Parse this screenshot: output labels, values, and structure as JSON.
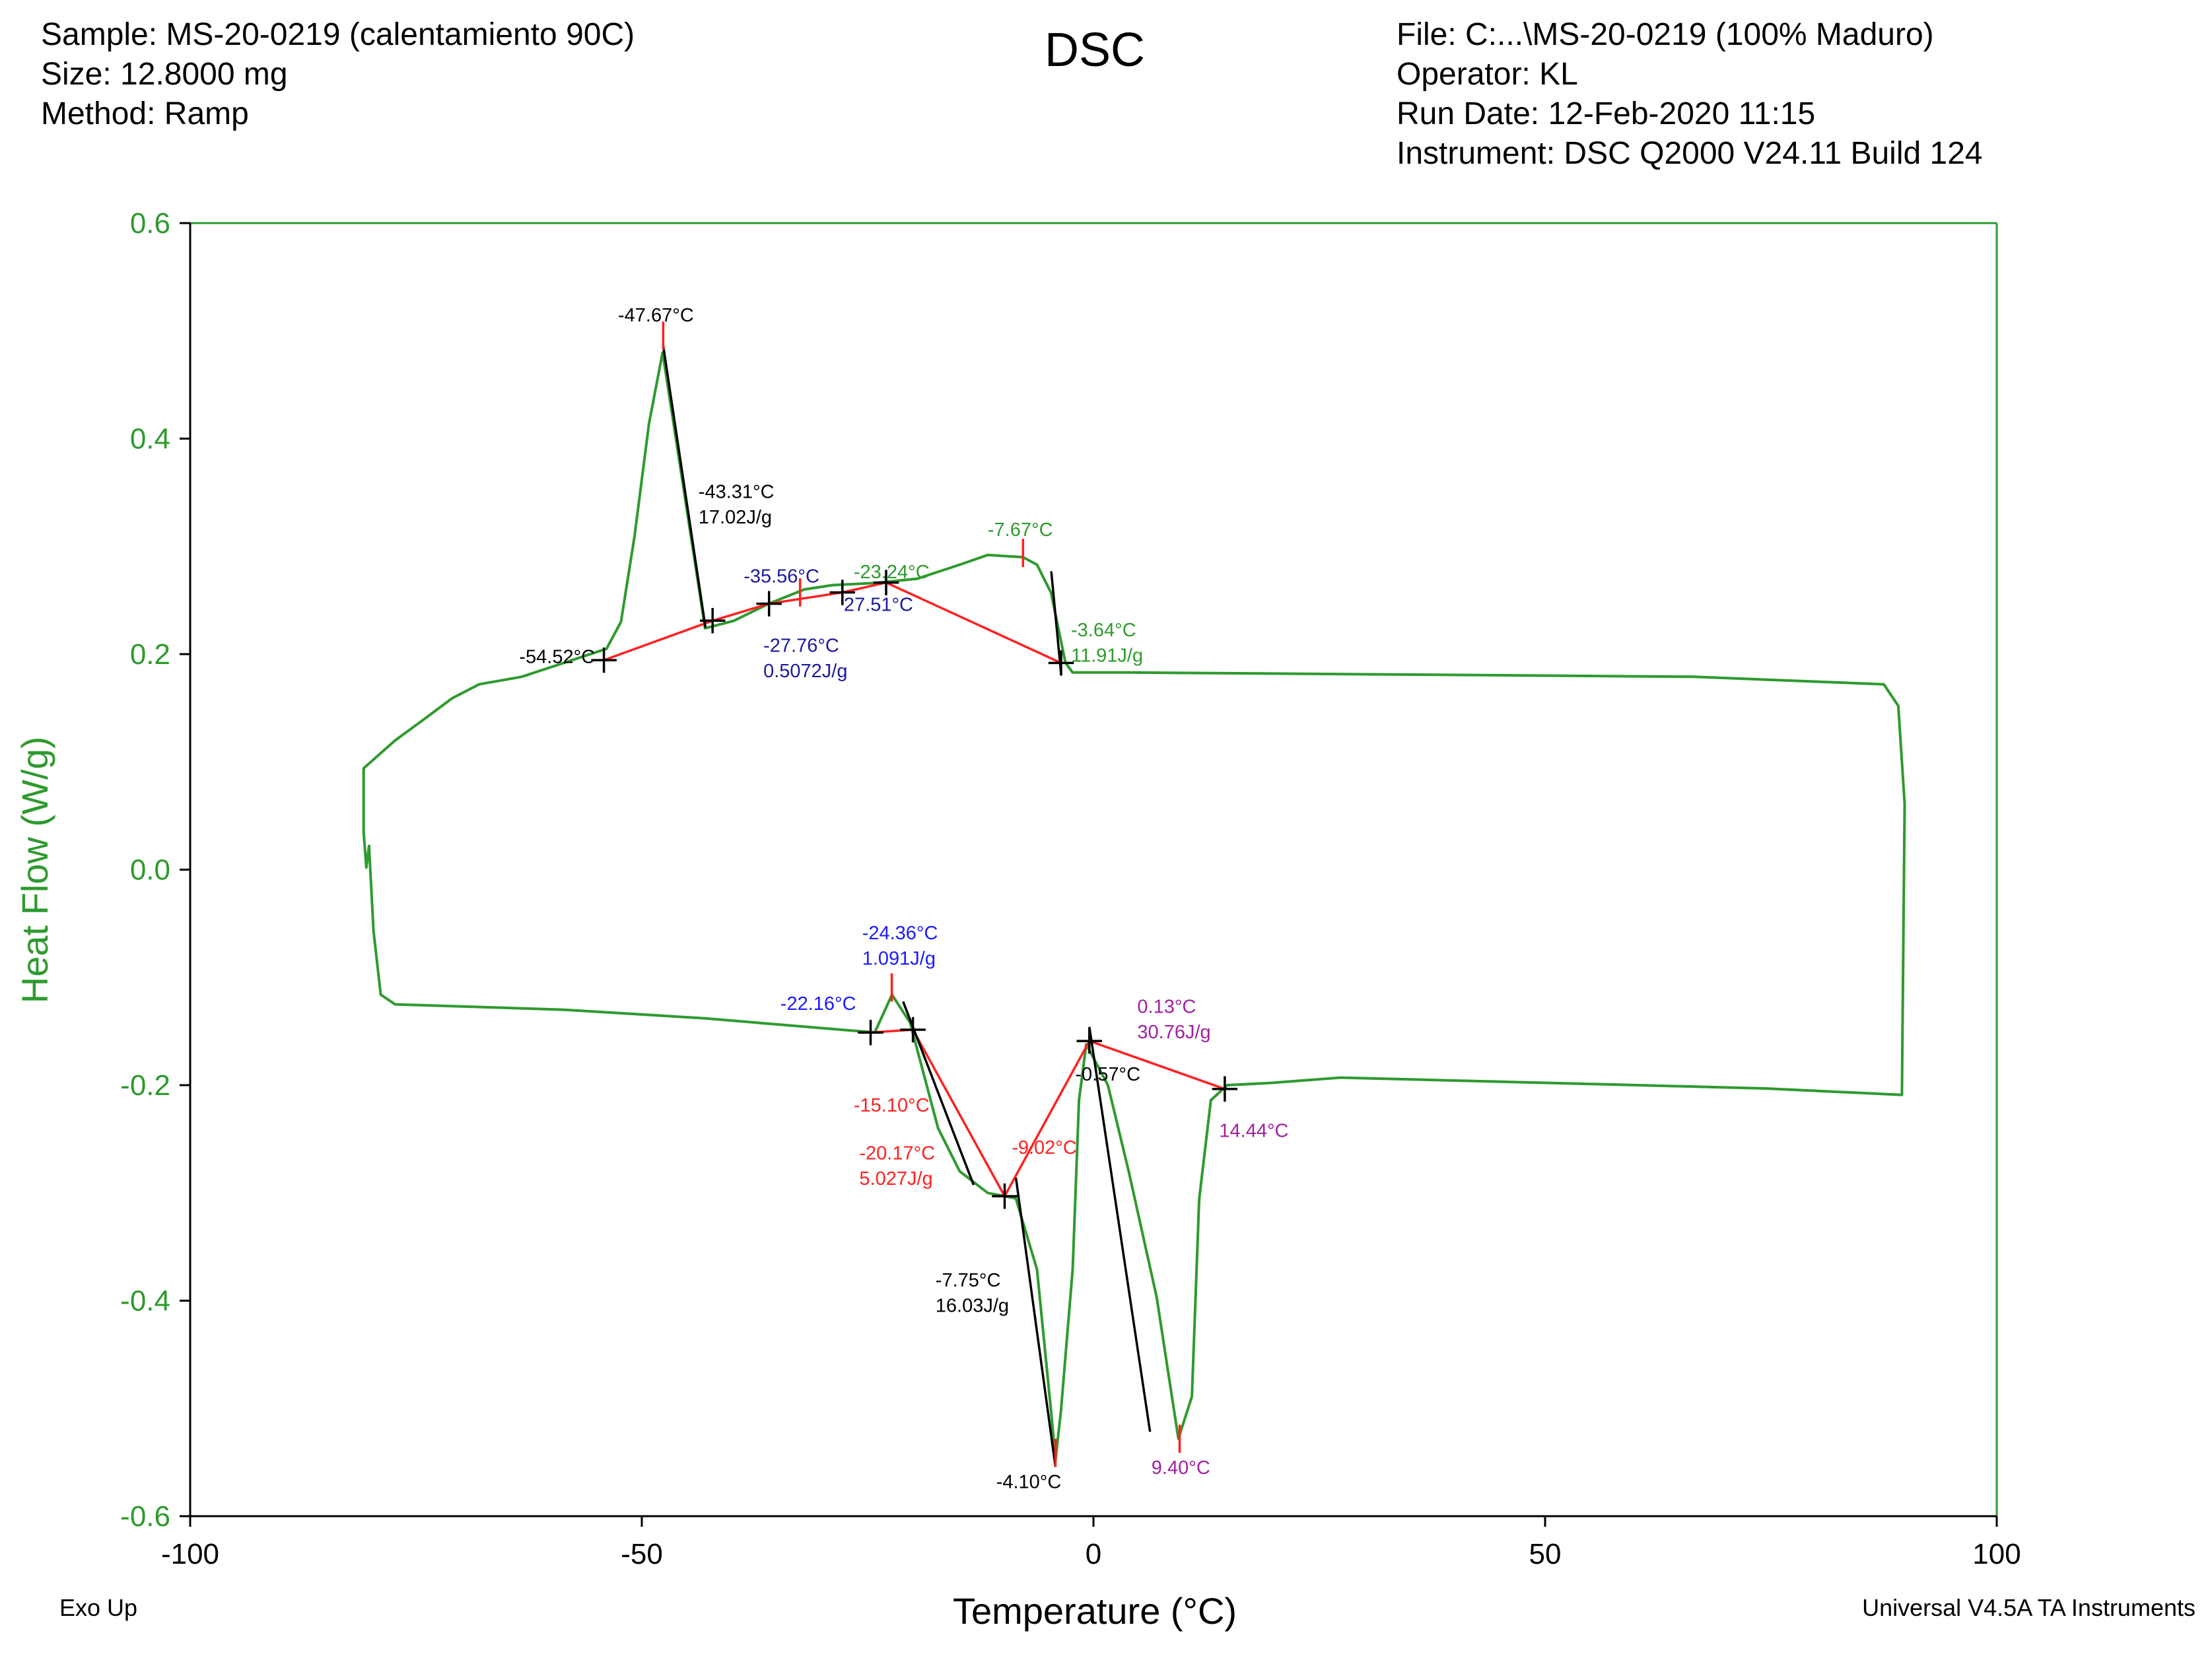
{
  "chart_data": {
    "type": "line",
    "title": "DSC",
    "header_left": [
      "Sample: MS-20-0219 (calentamiento 90C)",
      "Size:  12.8000 mg",
      "Method: Ramp"
    ],
    "header_right": [
      "File: C:...\\MS-20-0219 (100% Maduro)",
      "Operator: KL",
      "Run Date: 12-Feb-2020 11:15",
      "Instrument: DSC Q2000 V24.11 Build 124"
    ],
    "footer_left": "Exo Up",
    "footer_right": "Universal V4.5A TA Instruments",
    "x_label": "Temperature (°C)",
    "y_label": "Heat Flow (W/g)",
    "xlim": [
      -100,
      100
    ],
    "ylim": [
      -0.6,
      0.6
    ],
    "xticks": [
      -100,
      -50,
      {
        "value": 0,
        "label": "0"
      },
      50,
      100
    ],
    "yticks": [
      -0.6,
      -0.4,
      -0.2,
      {
        "value": 0,
        "label": "0.0"
      },
      0.2,
      0.4,
      0.6
    ],
    "axis_color": "#2e9a2e",
    "series": [
      {
        "color": "#2e9a2e",
        "x": [
          89.8,
          89.1,
          87.5,
          66.4,
          35.2,
          3.9,
          -2.3,
          -3.1,
          -4.7,
          -6.25,
          -7.8,
          -11.7,
          -14.8,
          -19.5,
          -24.2,
          -28.9,
          -32,
          -35.9,
          -39.8,
          -43,
          -47.7,
          -49.2,
          -50.8,
          -52.3,
          -53.9,
          -58.6,
          -63.3,
          -68,
          -71,
          -74.2,
          -77.3,
          -80.8,
          -80.8,
          -80.5,
          -80.2,
          -79.7,
          -78.9,
          -77.3,
          -58.6,
          -43,
          -27.3,
          -24.2,
          -22.3,
          -20.3,
          -17.2,
          -14.8,
          -11.7,
          -8.6,
          -6.25,
          -4.7,
          -4.2,
          -3.6,
          -2.3,
          -1.6,
          -0.8,
          1.6,
          3.9,
          7,
          9.4,
          10.9,
          11.7,
          13,
          14.8,
          19.5,
          27.3,
          50.8,
          74.2,
          89.5,
          89.8
        ],
        "values": [
          0.061,
          0.152,
          0.172,
          0.179,
          0.181,
          0.183,
          0.183,
          0.192,
          0.257,
          0.283,
          0.29,
          0.292,
          0.283,
          0.27,
          0.266,
          0.264,
          0.26,
          0.247,
          0.231,
          0.224,
          0.48,
          0.414,
          0.31,
          0.23,
          0.205,
          0.192,
          0.179,
          0.172,
          0.159,
          0.139,
          0.12,
          0.094,
          0.035,
          0.002,
          0.022,
          -0.057,
          -0.116,
          -0.125,
          -0.13,
          -0.138,
          -0.149,
          -0.151,
          -0.116,
          -0.142,
          -0.24,
          -0.28,
          -0.3,
          -0.305,
          -0.371,
          -0.502,
          -0.548,
          -0.502,
          -0.371,
          -0.214,
          -0.162,
          -0.2,
          -0.28,
          -0.397,
          -0.528,
          -0.489,
          -0.306,
          -0.214,
          -0.2,
          -0.198,
          -0.193,
          -0.198,
          -0.203,
          -0.209,
          0.061
        ]
      }
    ],
    "annotations": [
      {
        "lines": [
          "-47.67°C"
        ],
        "color": "#000000"
      },
      {
        "lines": [
          "-43.31°C",
          "17.02J/g"
        ],
        "color": "#000000"
      },
      {
        "lines": [
          "-7.67°C"
        ],
        "color": "#2e9a2e"
      },
      {
        "lines": [
          "-35.56°C"
        ],
        "color": "#1a1aa0"
      },
      {
        "lines": [
          "-23.24°C"
        ],
        "color": "#2e9a2e"
      },
      {
        "lines": [
          "27.51°C"
        ],
        "color": "#1a1aa0"
      },
      {
        "lines": [
          "-54.52°C"
        ],
        "color": "#000000"
      },
      {
        "lines": [
          "-27.76°C",
          "0.5072J/g"
        ],
        "color": "#1a1aa0"
      },
      {
        "lines": [
          "-3.64°C",
          "11.91J/g"
        ],
        "color": "#2e9a2e"
      },
      {
        "lines": [
          "-24.36°C",
          "1.091J/g"
        ],
        "color": "#1a1aff"
      },
      {
        "lines": [
          "-22.16°C"
        ],
        "color": "#1a1aff"
      },
      {
        "lines": [
          "0.13°C",
          "30.76J/g"
        ],
        "color": "#a020a0"
      },
      {
        "lines": [
          "-0.57°C"
        ],
        "color": "#000000"
      },
      {
        "lines": [
          "-15.10°C"
        ],
        "color": "#ff2020"
      },
      {
        "lines": [
          "-20.17°C",
          "5.027J/g"
        ],
        "color": "#ff2020"
      },
      {
        "lines": [
          "-9.02°C"
        ],
        "color": "#ff2020"
      },
      {
        "lines": [
          "14.44°C"
        ],
        "color": "#a020a0"
      },
      {
        "lines": [
          "-7.75°C",
          "16.03J/g"
        ],
        "color": "#000000"
      },
      {
        "lines": [
          "-4.10°C"
        ],
        "color": "#000000"
      },
      {
        "lines": [
          "9.40°C"
        ],
        "color": "#a020a0"
      }
    ]
  }
}
